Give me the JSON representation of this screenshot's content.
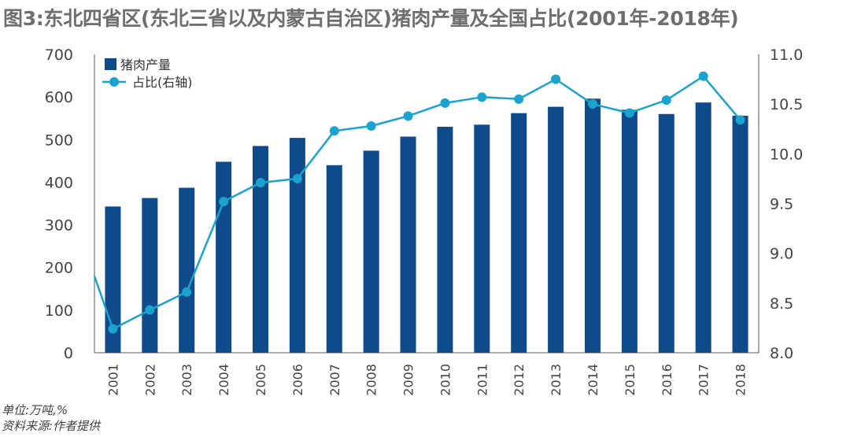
{
  "title": "图3:东北四省区(东北三省以及内蒙古自治区)猪肉产量及全国占比(2001年-2018年)",
  "footnote_unit": "单位:万吨,%",
  "footnote_source": "资料来源:作者提供",
  "colors": {
    "bar": "#0f4a8a",
    "line": "#1aa3cf",
    "axis": "#555555",
    "text": "#444444"
  },
  "chart_data": {
    "type": "bar",
    "categories": [
      "2001",
      "2002",
      "2003",
      "2004",
      "2005",
      "2006",
      "2007",
      "2008",
      "2009",
      "2010",
      "2011",
      "2012",
      "2013",
      "2014",
      "2015",
      "2016",
      "2017",
      "2018"
    ],
    "series": [
      {
        "name": "猪肉产量",
        "type": "bar",
        "axis": "left",
        "values": [
          343,
          363,
          387,
          448,
          485,
          504,
          440,
          474,
          507,
          530,
          535,
          562,
          577,
          596,
          570,
          560,
          587,
          556
        ]
      },
      {
        "name": "占比(右轴)",
        "type": "line",
        "axis": "right",
        "marker": "circle",
        "values": [
          8.24,
          8.43,
          8.61,
          9.52,
          9.71,
          9.75,
          10.23,
          10.28,
          10.38,
          10.51,
          10.57,
          10.55,
          10.75,
          10.5,
          10.41,
          10.54,
          10.78,
          10.34
        ],
        "left_edge_value": 8.77
      }
    ],
    "yleft": {
      "min": 0,
      "max": 700,
      "ticks": [
        0,
        100,
        200,
        300,
        400,
        500,
        600,
        700
      ]
    },
    "yright": {
      "min": 8.0,
      "max": 11.0,
      "ticks": [
        "8.0",
        "8.5",
        "9.0",
        "9.5",
        "10.0",
        "10.5",
        "11.0"
      ]
    },
    "legend_position": "top-left",
    "grid": false
  }
}
